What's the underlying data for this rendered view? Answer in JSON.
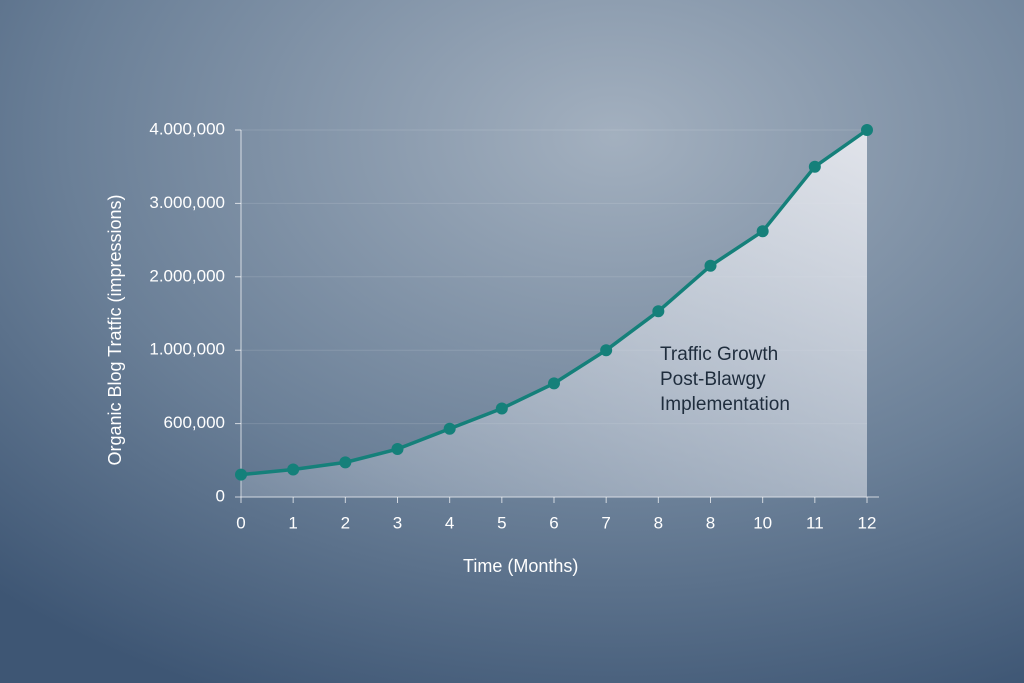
{
  "chart_data": {
    "type": "line",
    "annotation": [
      "Traffic Growth",
      "Post-Blawgy",
      "Implementation"
    ],
    "xlabel": "Time (Months)",
    "ylabel": "Organic Blog Tratfic (impressions)",
    "categories": [
      "0",
      "1",
      "2",
      "3",
      "4",
      "5",
      "6",
      "7",
      "8",
      "8",
      "10",
      "11",
      "12"
    ],
    "series": [
      {
        "color": "#15807a",
        "values": [
          183000,
          225000,
          283000,
          392000,
          558000,
          682000,
          819000,
          1000000,
          1530000,
          2150000,
          2620000,
          3500000,
          4000000
        ]
      }
    ],
    "ylim": [
      0,
      4000000
    ],
    "yticks": [
      0,
      {
        "value": 600000,
        "label": "600,000"
      },
      {
        "value": 1000000,
        "label": "1.000,000"
      },
      {
        "value": 2000000,
        "label": "2.000,000"
      },
      {
        "value": 3000000,
        "label": "3.000,000"
      },
      {
        "value": 4000000,
        "label": "4.000,000"
      }
    ],
    "grid": true
  }
}
